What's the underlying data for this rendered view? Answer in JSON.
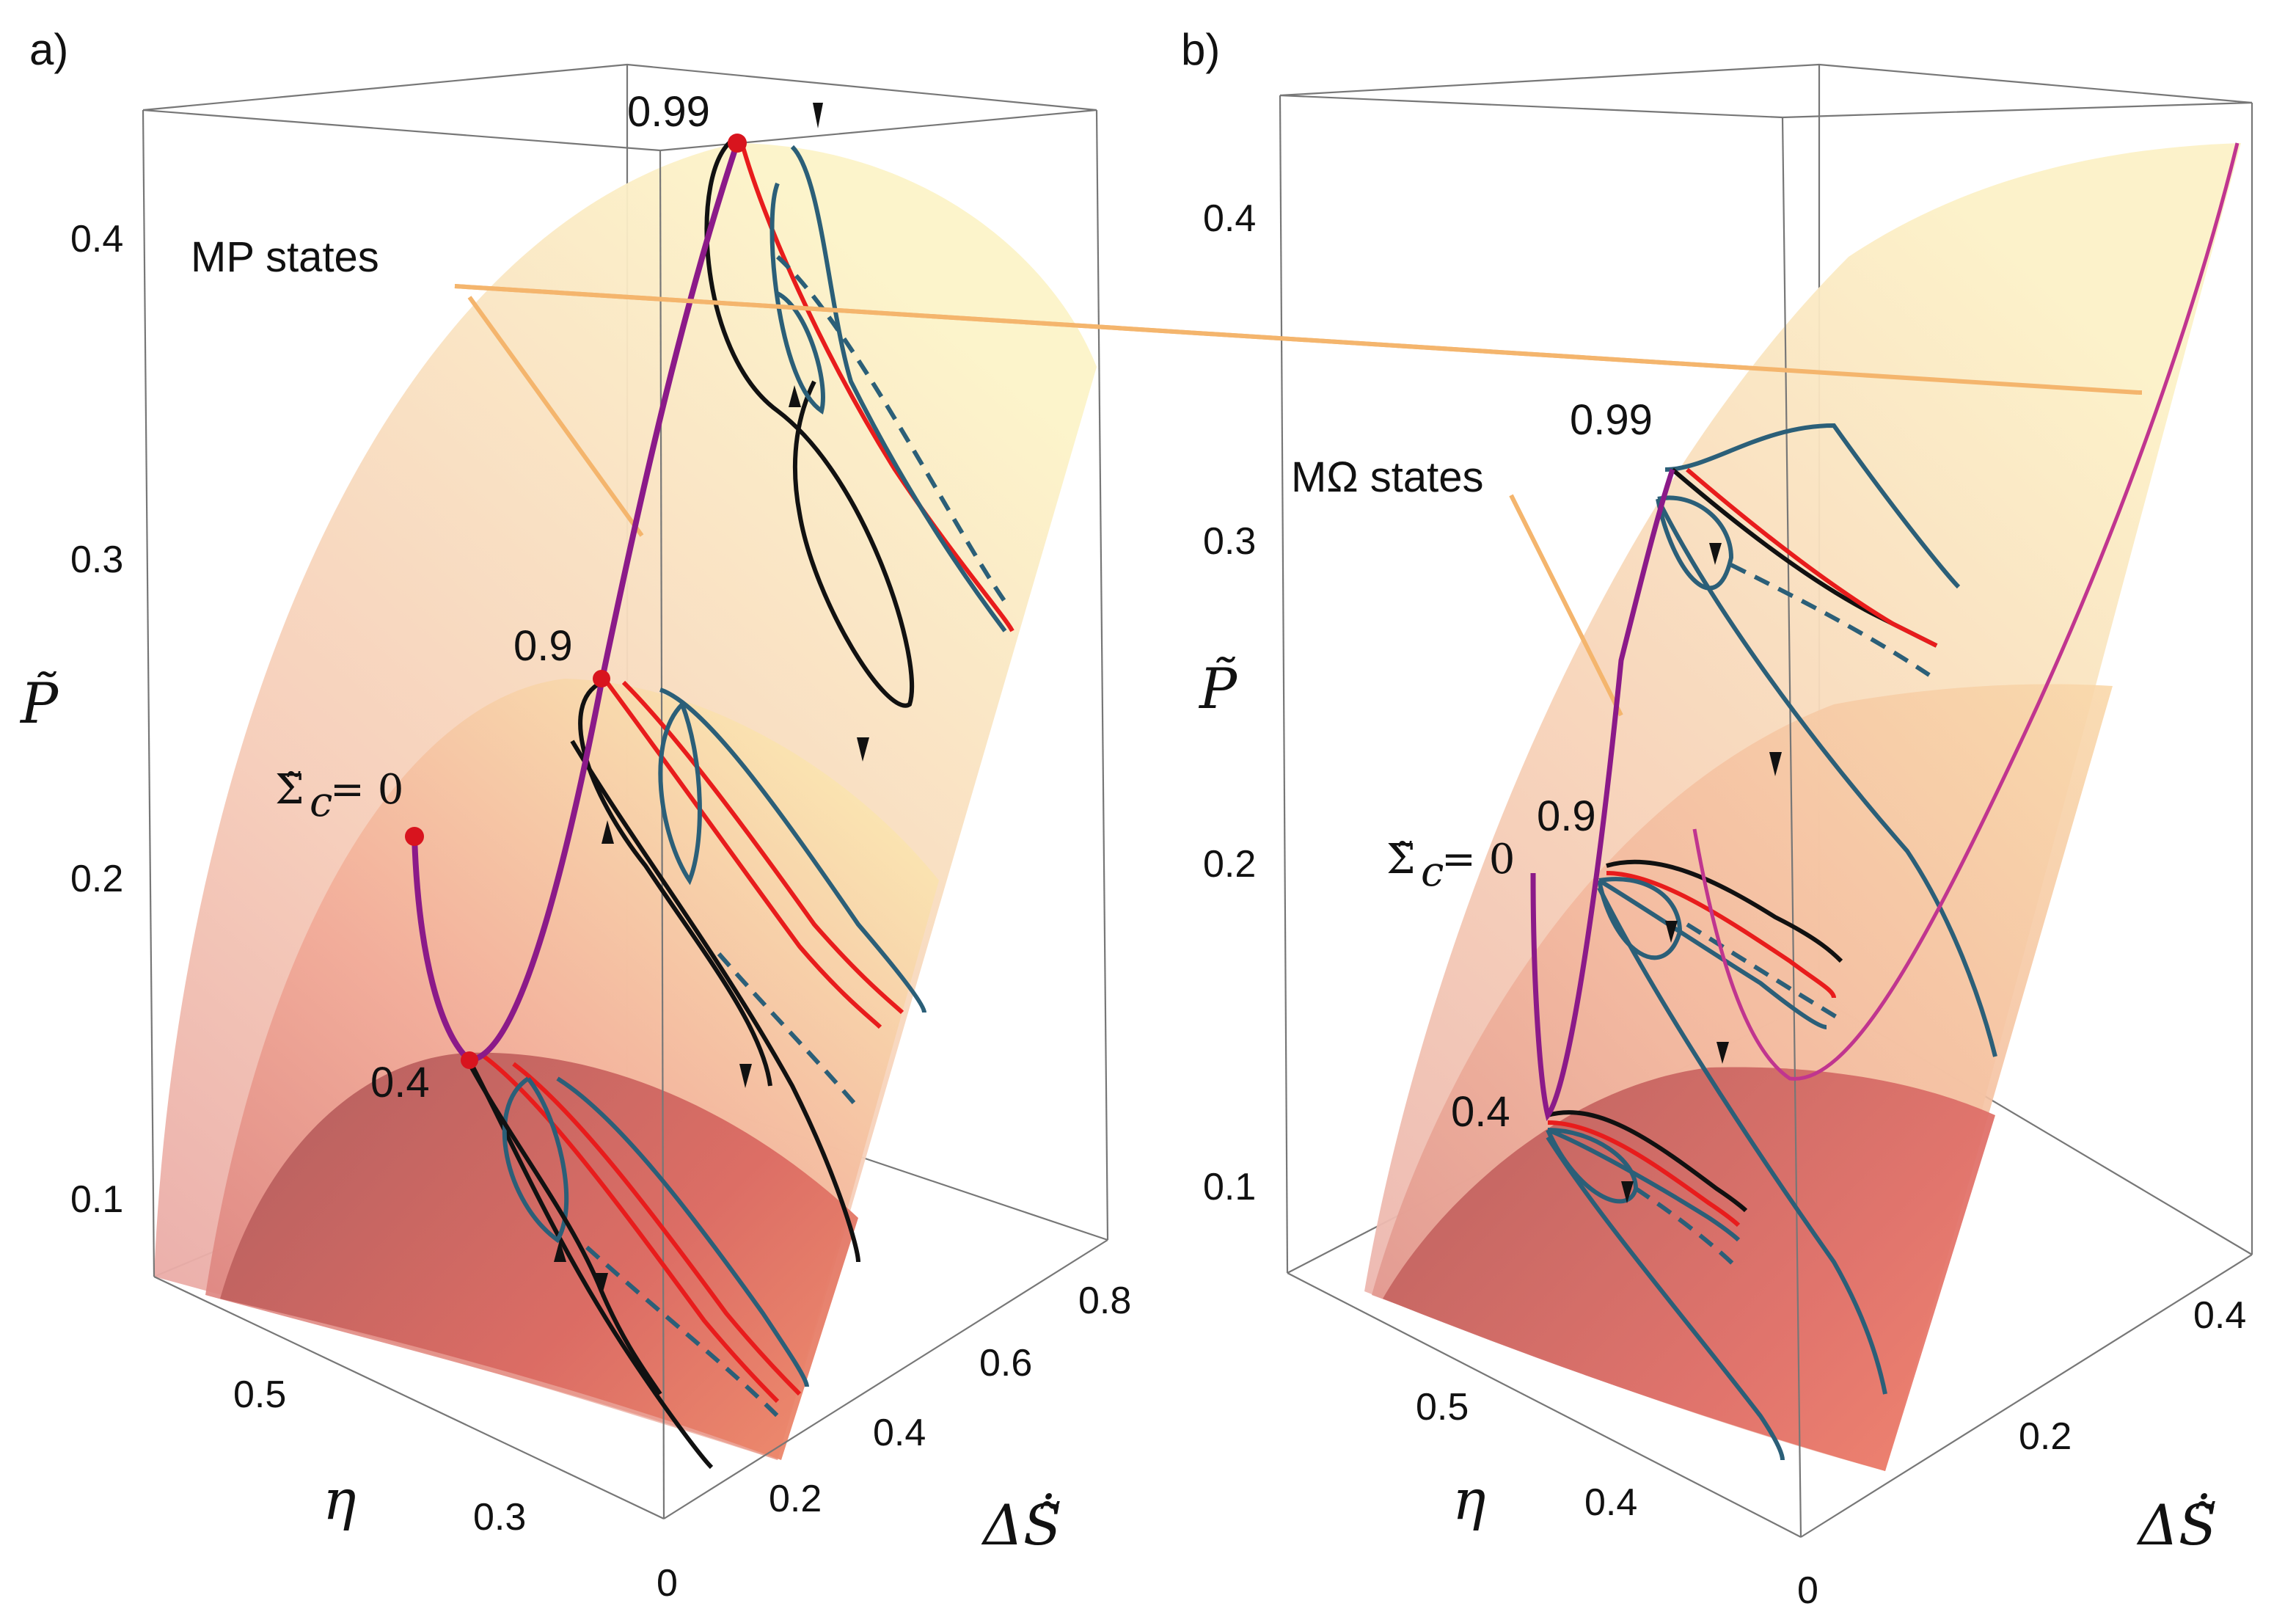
{
  "chart_data": [
    {
      "panel": "a)",
      "type": "surface3d",
      "zlabel": "P̃",
      "ylabel": "η",
      "xlabel": "ΔṠ̃",
      "z_ticks": [
        "0.1",
        "0.2",
        "0.3",
        "0.4"
      ],
      "eta_ticks": [
        "0.5",
        "0.3"
      ],
      "entropy_ticks": [
        "0",
        "0.2",
        "0.4",
        "0.6",
        "0.8"
      ],
      "annotation": "MP states",
      "sigma_label": "Σ̃",
      "sigma_sub": "c",
      "sigma_value": "= 0",
      "levels": [
        "0.4",
        "0.9",
        "0.99"
      ],
      "series": [
        {
          "name": "MP states locus",
          "color": "#8b1a89"
        },
        {
          "name": "trajectory (black)",
          "color": "#111111"
        },
        {
          "name": "trajectory (red)",
          "color": "#e81c1c"
        },
        {
          "name": "trajectory (teal)",
          "color": "#2b5f78"
        }
      ]
    },
    {
      "panel": "b)",
      "type": "surface3d",
      "zlabel": "P̃",
      "ylabel": "η",
      "xlabel": "ΔṠ̃",
      "z_ticks": [
        "0.1",
        "0.2",
        "0.3",
        "0.4"
      ],
      "eta_ticks": [
        "0.5",
        "0.4"
      ],
      "entropy_ticks": [
        "0",
        "0.2",
        "0.4"
      ],
      "annotation": "MΩ states",
      "sigma_label": "Σ̃",
      "sigma_sub": "c",
      "sigma_value": "= 0",
      "levels": [
        "0.4",
        "0.9",
        "0.99"
      ],
      "series": [
        {
          "name": "MΩ states locus",
          "color": "#8b1a89"
        },
        {
          "name": "trajectory (black)",
          "color": "#111111"
        },
        {
          "name": "trajectory (red)",
          "color": "#e81c1c"
        },
        {
          "name": "trajectory (teal)",
          "color": "#2b5f78"
        }
      ]
    }
  ],
  "colors": {
    "surface_light": "#fbf3c3",
    "surface_mid": "#f6b49a",
    "surface_dark": "#c85a58",
    "leader": "#f4b56d",
    "locus": "#8b1a89",
    "red": "#e81c1c",
    "teal": "#2b5f78",
    "black": "#111111",
    "marker": "#d8141e"
  }
}
